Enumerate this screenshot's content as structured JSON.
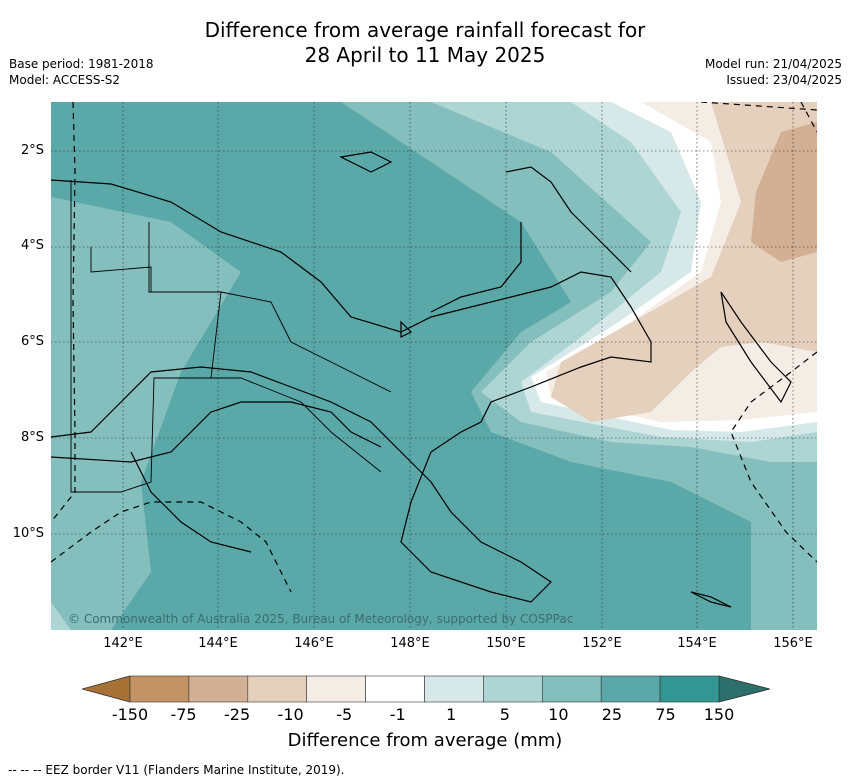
{
  "title": {
    "line1": "Difference from average rainfall forecast for",
    "line2": "28 April to 11 May 2025"
  },
  "meta_left": {
    "base_period": "Base period: 1981-2018",
    "model": "Model: ACCESS-S2"
  },
  "meta_right": {
    "model_run": "Model run: 21/04/2025",
    "issued": "Issued: 23/04/2025"
  },
  "map": {
    "lat_labels": [
      "2°S",
      "4°S",
      "6°S",
      "8°S",
      "10°S"
    ],
    "lon_labels": [
      "142°E",
      "144°E",
      "146°E",
      "148°E",
      "150°E",
      "152°E",
      "154°E",
      "156°E"
    ],
    "copyright": "© Commonwealth of Australia 2025, Bureau of Meteorology, supported by COSPPac"
  },
  "colorbar": {
    "ticks": [
      "-150",
      "-75",
      "-25",
      "-10",
      "-5",
      "-1",
      "1",
      "5",
      "10",
      "25",
      "75",
      "150"
    ],
    "colors": [
      "#a87237",
      "#c29364",
      "#d3b093",
      "#e5d0bd",
      "#f4ede6",
      "#ffffff",
      "#d6e9e8",
      "#add5d4",
      "#84bfbe",
      "#5aa9a8",
      "#329793",
      "#2c6f6b"
    ],
    "label": "Difference from average (mm)"
  },
  "footer": {
    "eez_note": "--  --  -- EEZ border V11 (Flanders Marine Institute, 2019)."
  }
}
